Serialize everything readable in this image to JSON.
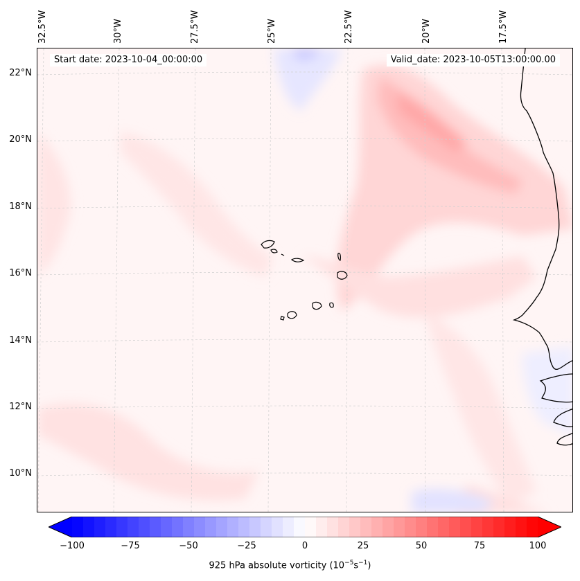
{
  "header": {
    "start_date": "Start date: 2023-10-04_00:00:00",
    "valid_date": "Valid_date: 2023-10-05T13:00:00.00"
  },
  "axes": {
    "lon_labels": [
      "32.5°W",
      "30°W",
      "27.5°W",
      "25°W",
      "22.5°W",
      "20°W",
      "17.5°W"
    ],
    "lat_labels": [
      "22°N",
      "20°N",
      "18°N",
      "16°N",
      "14°N",
      "12°N",
      "10°N"
    ]
  },
  "colorbar": {
    "ticks": [
      "−100",
      "−75",
      "−50",
      "−25",
      "0",
      "25",
      "50",
      "75",
      "100"
    ],
    "label_prefix": "925 hPa absolute vorticity (10",
    "label_exp1": "−5",
    "label_mid": "s",
    "label_exp2": "−1",
    "label_suffix": ")",
    "min": -100,
    "max": 100,
    "neg_color": "#0000ff",
    "pos_color": "#ff0000"
  },
  "map": {
    "ocean_tint": "#fff6f6",
    "grid_color": "#c8c8c8",
    "coast_color": "#000000"
  }
}
